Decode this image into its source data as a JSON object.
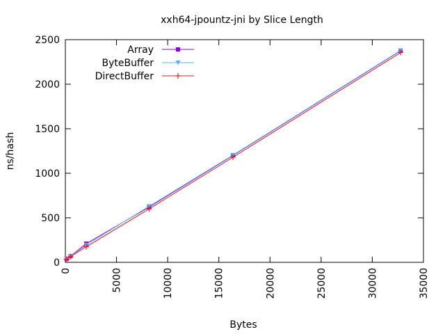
{
  "chart_data": {
    "type": "line",
    "title": "xxh64-jpountz-jni by Slice Length",
    "xlabel": "Bytes",
    "ylabel": "ns/hash",
    "xlim": [
      0,
      35000
    ],
    "ylim": [
      0,
      2500
    ],
    "xticks": [
      0,
      5000,
      10000,
      15000,
      20000,
      25000,
      30000,
      35000
    ],
    "yticks": [
      0,
      500,
      1000,
      1500,
      2000,
      2500
    ],
    "grid": false,
    "legend_position": "top-left",
    "series": [
      {
        "name": "Array",
        "color": "#9400d3",
        "marker": "square",
        "x": [
          128,
          512,
          2048,
          8192,
          16384,
          32768
        ],
        "y": [
          40,
          70,
          210,
          620,
          1200,
          2375
        ]
      },
      {
        "name": "ByteBuffer",
        "color": "#56b4e9",
        "marker": "triangle-down",
        "x": [
          128,
          512,
          2048,
          8192,
          16384,
          32768
        ],
        "y": [
          38,
          68,
          195,
          630,
          1205,
          2380
        ]
      },
      {
        "name": "DirectBuffer",
        "color": "#e41a1c",
        "marker": "plus",
        "x": [
          128,
          512,
          2048,
          8192,
          16384,
          32768
        ],
        "y": [
          35,
          65,
          175,
          600,
          1180,
          2355
        ]
      }
    ]
  }
}
